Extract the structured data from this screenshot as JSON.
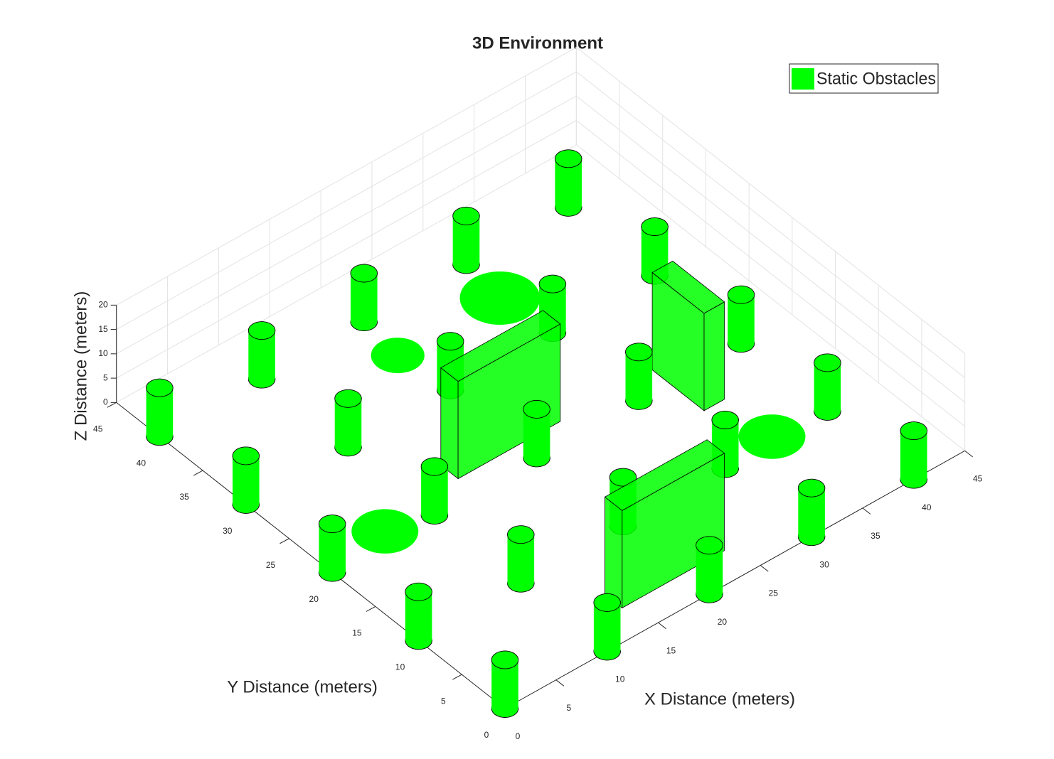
{
  "chart_data": {
    "type": "obstacles3d",
    "title": "3D Environment",
    "xlabel": "X Distance (meters)",
    "ylabel": "Y Distance (meters)",
    "zlabel": "Z Distance (meters)",
    "xlim": [
      0,
      45
    ],
    "ylim": [
      0,
      45
    ],
    "zlim": [
      0,
      20
    ],
    "xticks": [
      0,
      5,
      10,
      15,
      20,
      25,
      30,
      35,
      40,
      45
    ],
    "yticks": [
      0,
      5,
      10,
      15,
      20,
      25,
      30,
      35,
      40,
      45
    ],
    "zticks": [
      0,
      5,
      10,
      15,
      20
    ],
    "grid": true,
    "legend": "northeast",
    "series": [
      {
        "name": "Static Obstacles",
        "color": "#00ff00",
        "cylinders": {
          "x": [
            0,
            10,
            20,
            30,
            40,
            0,
            10,
            20,
            30,
            40,
            0,
            10,
            20,
            30,
            40,
            0,
            10,
            20,
            30,
            40,
            0,
            10,
            20,
            30,
            40
          ],
          "y": [
            40,
            40,
            40,
            40,
            40,
            30,
            30,
            30,
            30,
            30,
            20,
            20,
            20,
            20,
            20,
            10,
            10,
            10,
            10,
            10,
            0,
            0,
            0,
            0,
            0
          ],
          "radius": 1,
          "height": 10
        },
        "boxes": [
          {
            "x": [
              14,
              24
            ],
            "y": [
              22,
              24
            ],
            "z": [
              0,
              20
            ]
          },
          {
            "x": [
              33,
              35
            ],
            "y": [
              16,
              22
            ],
            "z": [
              0,
              20
            ]
          },
          {
            "x": [
              14,
              24
            ],
            "y": [
              3,
              5
            ],
            "z": [
              0,
              20
            ]
          }
        ],
        "disks": [
          {
            "x": 19.5,
            "y": 35.5,
            "radius": 2
          },
          {
            "x": 29.5,
            "y": 35.5,
            "radius": 3
          },
          {
            "x": 6,
            "y": 21,
            "radius": 2.5
          },
          {
            "x": 35,
            "y": 10.5,
            "radius": 2.5
          }
        ]
      }
    ]
  }
}
